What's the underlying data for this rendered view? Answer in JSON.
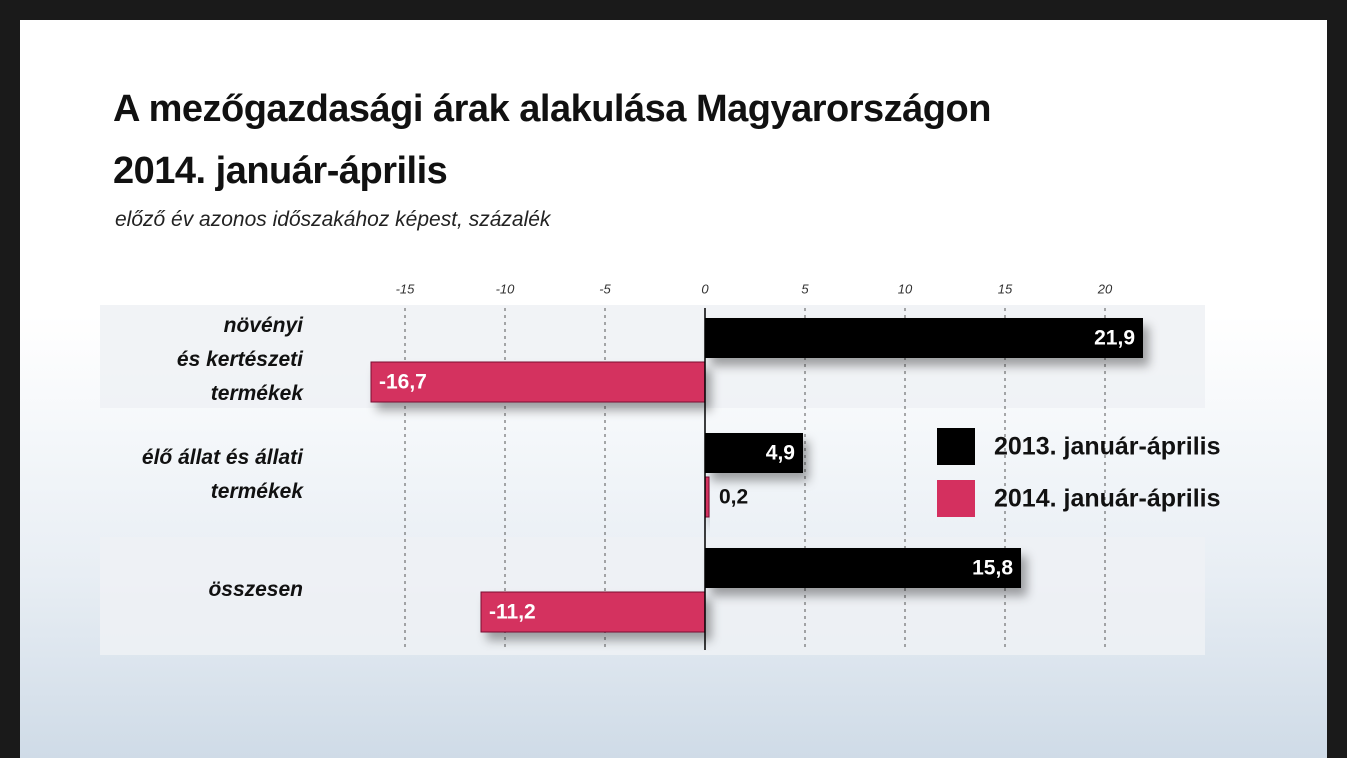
{
  "chart_data": {
    "type": "bar",
    "orientation": "horizontal",
    "title": "A mezőgazdasági árak alakulása Magyarországon\n2014. január-április",
    "subtitle": "előző év azonos időszakához képest, százalék",
    "categories": [
      "növényi\nés kertészeti\ntermékek",
      "élő állat és állati\ntermékek",
      "összesen"
    ],
    "series": [
      {
        "name": "2013. január-április",
        "color": "#000000",
        "values": [
          21.9,
          4.9,
          15.8
        ],
        "value_labels": [
          "21,9",
          "4,9",
          "15,8"
        ]
      },
      {
        "name": "2014. január-április",
        "color": "#d4305f",
        "values": [
          -16.7,
          0.2,
          -11.2
        ],
        "value_labels": [
          "-16,7",
          "0,2",
          "-11,2"
        ]
      }
    ],
    "xlim": [
      -30.25,
      25
    ],
    "xticks": [
      -15,
      -10,
      -5,
      0,
      5,
      10,
      15,
      20
    ],
    "grid": true,
    "legend_position": "right"
  }
}
